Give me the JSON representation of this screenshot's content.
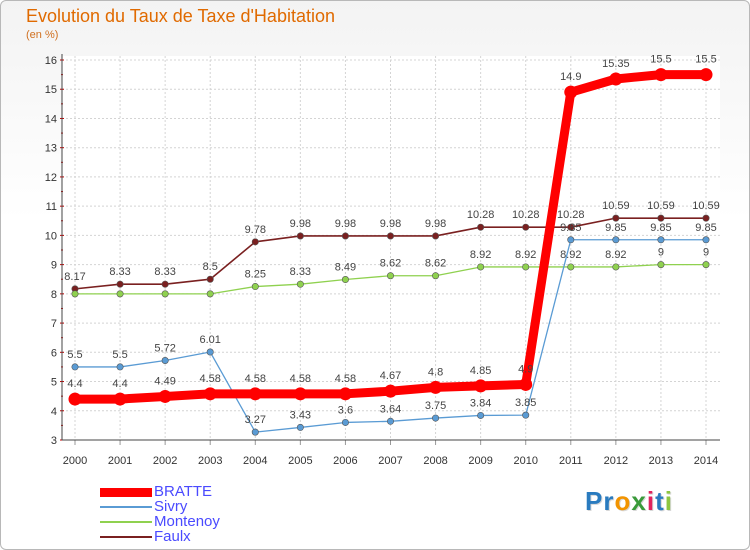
{
  "header": {
    "title": "Evolution du Taux de Taxe d'Habitation",
    "subtitle": "(en %)"
  },
  "logo": {
    "text": "Proxiti",
    "letters": [
      {
        "char": "P",
        "color": "#2a7bbf"
      },
      {
        "char": "r",
        "color": "#2a7bbf"
      },
      {
        "char": "o",
        "color": "#f29400"
      },
      {
        "char": "x",
        "color": "#3a9a3a"
      },
      {
        "char": "i",
        "color": "#e0245e"
      },
      {
        "char": "t",
        "color": "#2a7bbf"
      },
      {
        "char": "i",
        "color": "#8dc63f"
      }
    ]
  },
  "chart_data": {
    "type": "line",
    "title": "Evolution du Taux de Taxe d'Habitation",
    "ylabel": "(en %)",
    "xlabel": "",
    "x": [
      "2000",
      "2001",
      "2002",
      "2003",
      "2004",
      "2005",
      "2006",
      "2007",
      "2008",
      "2009",
      "2010",
      "2011",
      "2012",
      "2013",
      "2014"
    ],
    "ylim": [
      3,
      16
    ],
    "yticks": [
      3,
      4,
      5,
      6,
      7,
      8,
      9,
      10,
      11,
      12,
      13,
      14,
      15,
      16
    ],
    "grid": true,
    "legend": "bottom-left",
    "series": [
      {
        "name": "BRATTE",
        "color": "#ff0000",
        "width": 9,
        "values": [
          4.4,
          4.4,
          4.49,
          4.58,
          4.58,
          4.58,
          4.58,
          4.67,
          4.8,
          4.85,
          4.9,
          14.9,
          15.35,
          15.5,
          15.5
        ],
        "labels": [
          "4.4",
          "4.4",
          "4.49",
          "4.58",
          "4.58",
          "4.58",
          "4.58",
          "4.67",
          "4.8",
          "4.85",
          "4.9",
          "14.9",
          "15.35",
          "15.5",
          "15.5"
        ]
      },
      {
        "name": "Sivry",
        "color": "#5a9bd4",
        "width": 1.3,
        "values": [
          5.5,
          5.5,
          5.72,
          6.01,
          3.27,
          3.43,
          3.6,
          3.64,
          3.75,
          3.84,
          3.85,
          9.85,
          9.85,
          9.85,
          9.85
        ],
        "labels": [
          "5.5",
          "5.5",
          "5.72",
          "6.01",
          "3.27",
          "3.43",
          "3.6",
          "3.64",
          "3.75",
          "3.84",
          "3.85",
          "9.85",
          "9.85",
          "9.85",
          "9.85"
        ]
      },
      {
        "name": "Montenoy",
        "color": "#8fd14f",
        "width": 1.3,
        "values": [
          8,
          8,
          8,
          8,
          8.25,
          8.33,
          8.49,
          8.62,
          8.62,
          8.92,
          8.92,
          8.92,
          8.92,
          9,
          9
        ],
        "labels": [
          "",
          "",
          "",
          "",
          "8.25",
          "8.33",
          "8.49",
          "8.62",
          "8.62",
          "8.92",
          "8.92",
          "8.92",
          "8.92",
          "9",
          "9"
        ]
      },
      {
        "name": "Faulx",
        "color": "#7a2020",
        "width": 1.6,
        "values": [
          8.17,
          8.33,
          8.33,
          8.5,
          9.78,
          9.98,
          9.98,
          9.98,
          9.98,
          10.28,
          10.28,
          10.28,
          10.59,
          10.59,
          10.59
        ],
        "labels": [
          "8.17",
          "8.33",
          "8.33",
          "8.5",
          "9.78",
          "9.98",
          "9.98",
          "9.98",
          "9.98",
          "10.28",
          "10.28",
          "10.28",
          "10.59",
          "10.59",
          "10.59"
        ]
      }
    ]
  }
}
